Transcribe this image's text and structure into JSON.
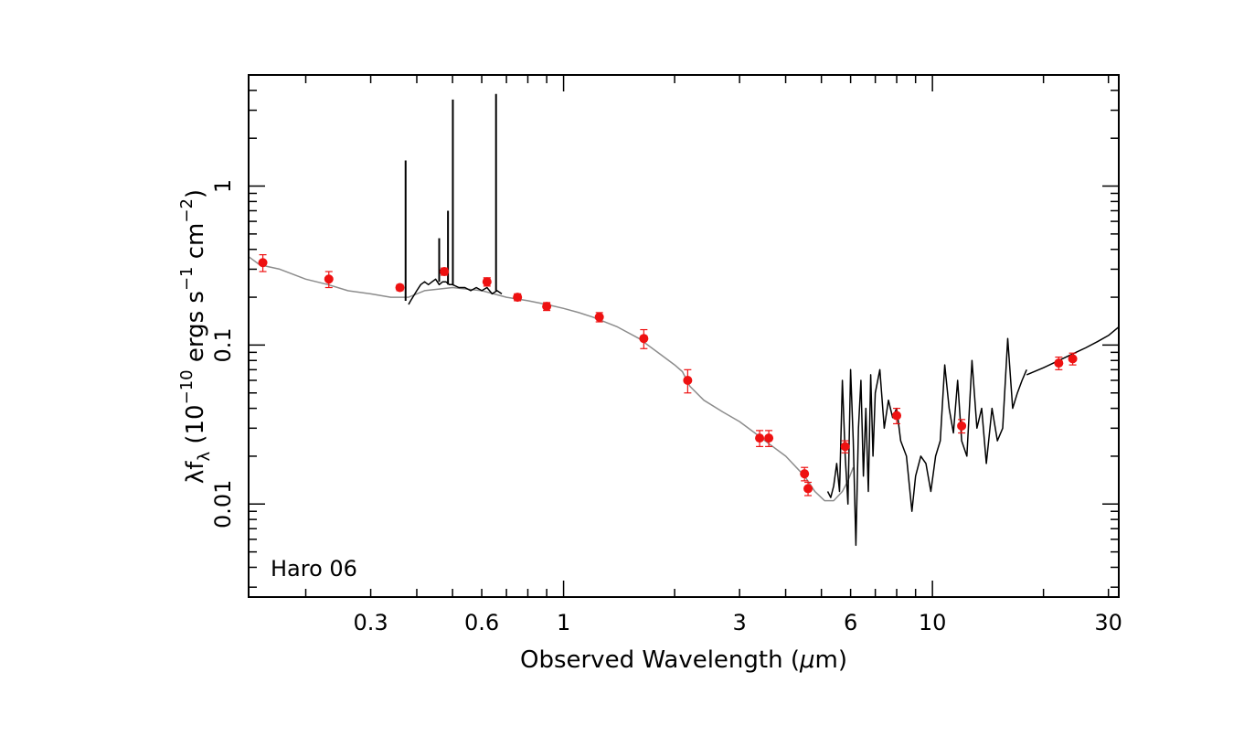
{
  "chart_data": {
    "type": "line",
    "xlabel_main": "Observed Wavelength (",
    "xlabel_unit": "μ",
    "xlabel_tail": "m)",
    "ylabel_lambda": "λf",
    "ylabel_lambda_sub": "λ",
    "ylabel_open": " (10",
    "ylabel_exp1": "−10",
    "ylabel_mid": " ergs s",
    "ylabel_exp2": "−1",
    "ylabel_mid2": " cm",
    "ylabel_exp3": "−2",
    "ylabel_close": ")",
    "annotation": "Haro 06",
    "x_scale": "log",
    "y_scale": "log",
    "xlim": [
      0.14,
      32
    ],
    "ylim": [
      0.0026,
      5.0
    ],
    "x_ticks": [
      {
        "value": 0.3,
        "label": "0.3"
      },
      {
        "value": 0.6,
        "label": "0.6"
      },
      {
        "value": 1,
        "label": "1"
      },
      {
        "value": 3,
        "label": "3"
      },
      {
        "value": 6,
        "label": "6"
      },
      {
        "value": 10,
        "label": "10"
      },
      {
        "value": 30,
        "label": "30"
      }
    ],
    "y_ticks": [
      {
        "value": 0.01,
        "label": "0.01"
      },
      {
        "value": 0.1,
        "label": "0.1"
      },
      {
        "value": 1,
        "label": "1"
      }
    ],
    "colors": {
      "model": "#8c8c8c",
      "spectrum": "#000000",
      "points": "#ee1111"
    },
    "model_sed": {
      "x": [
        0.14,
        0.15,
        0.17,
        0.2,
        0.23,
        0.26,
        0.3,
        0.34,
        0.38,
        0.42,
        0.5,
        0.6,
        0.7,
        0.8,
        0.9,
        1.0,
        1.1,
        1.2,
        1.4,
        1.6,
        1.8,
        2.0,
        2.1,
        2.2,
        2.4,
        2.7,
        3.0,
        3.3,
        3.6,
        4.0,
        4.5,
        4.8,
        5.1,
        5.4,
        5.7,
        5.9,
        6.1
      ],
      "y": [
        0.36,
        0.32,
        0.3,
        0.26,
        0.24,
        0.22,
        0.21,
        0.2,
        0.2,
        0.22,
        0.23,
        0.22,
        0.2,
        0.19,
        0.18,
        0.17,
        0.16,
        0.15,
        0.13,
        0.11,
        0.09,
        0.075,
        0.068,
        0.055,
        0.045,
        0.038,
        0.033,
        0.028,
        0.024,
        0.02,
        0.015,
        0.012,
        0.0105,
        0.0105,
        0.012,
        0.014,
        0.017
      ]
    },
    "model_sed_tail": {
      "x": [
        18,
        20,
        22,
        24,
        26,
        28,
        30,
        32
      ],
      "y": [
        0.065,
        0.072,
        0.08,
        0.088,
        0.096,
        0.105,
        0.115,
        0.13
      ]
    },
    "optical_spectrum": {
      "x": [
        0.38,
        0.385,
        0.39,
        0.4,
        0.41,
        0.42,
        0.43,
        0.44,
        0.45,
        0.46,
        0.47,
        0.48,
        0.49,
        0.5,
        0.52,
        0.54,
        0.56,
        0.58,
        0.6,
        0.62,
        0.64,
        0.66,
        0.68
      ],
      "y": [
        0.18,
        0.19,
        0.2,
        0.22,
        0.24,
        0.25,
        0.24,
        0.25,
        0.26,
        0.24,
        0.25,
        0.25,
        0.24,
        0.24,
        0.23,
        0.23,
        0.22,
        0.23,
        0.22,
        0.23,
        0.21,
        0.22,
        0.21
      ]
    },
    "emission_lines": [
      {
        "x": 0.373,
        "peak": 1.45,
        "base": 0.19
      },
      {
        "x": 0.486,
        "peak": 0.7,
        "base": 0.24
      },
      {
        "x": 0.501,
        "peak": 3.5,
        "base": 0.24
      },
      {
        "x": 0.656,
        "peak": 3.8,
        "base": 0.22
      },
      {
        "x": 0.46,
        "peak": 0.47,
        "base": 0.25
      }
    ],
    "ir_spectrum": {
      "x": [
        5.2,
        5.3,
        5.4,
        5.5,
        5.6,
        5.7,
        5.8,
        5.9,
        6.0,
        6.1,
        6.2,
        6.3,
        6.4,
        6.5,
        6.6,
        6.7,
        6.8,
        6.9,
        7.0,
        7.2,
        7.4,
        7.6,
        7.8,
        8.0,
        8.2,
        8.5,
        8.8,
        9.0,
        9.3,
        9.6,
        9.9,
        10.2,
        10.5,
        10.8,
        11.1,
        11.4,
        11.7,
        12.0,
        12.4,
        12.8,
        13.2,
        13.6,
        14.0,
        14.5,
        15.0,
        15.5,
        16.0,
        16.5,
        17.0,
        17.5,
        18.0
      ],
      "y": [
        0.012,
        0.011,
        0.013,
        0.018,
        0.012,
        0.06,
        0.02,
        0.01,
        0.07,
        0.025,
        0.0055,
        0.03,
        0.06,
        0.015,
        0.04,
        0.012,
        0.065,
        0.02,
        0.05,
        0.07,
        0.03,
        0.045,
        0.035,
        0.04,
        0.025,
        0.02,
        0.009,
        0.015,
        0.02,
        0.018,
        0.012,
        0.02,
        0.025,
        0.075,
        0.04,
        0.028,
        0.06,
        0.025,
        0.02,
        0.08,
        0.03,
        0.04,
        0.018,
        0.04,
        0.025,
        0.03,
        0.11,
        0.04,
        0.05,
        0.06,
        0.07
      ]
    },
    "photometry": [
      {
        "x": 0.153,
        "y": 0.33,
        "err": 0.04
      },
      {
        "x": 0.231,
        "y": 0.26,
        "err": 0.03
      },
      {
        "x": 0.36,
        "y": 0.23,
        "err": 0.01
      },
      {
        "x": 0.475,
        "y": 0.29,
        "err": 0.015
      },
      {
        "x": 0.62,
        "y": 0.25,
        "err": 0.015
      },
      {
        "x": 0.75,
        "y": 0.2,
        "err": 0.01
      },
      {
        "x": 0.9,
        "y": 0.175,
        "err": 0.01
      },
      {
        "x": 1.25,
        "y": 0.15,
        "err": 0.01
      },
      {
        "x": 1.65,
        "y": 0.11,
        "err": 0.015
      },
      {
        "x": 2.17,
        "y": 0.06,
        "err": 0.01
      },
      {
        "x": 3.4,
        "y": 0.026,
        "err": 0.003
      },
      {
        "x": 3.6,
        "y": 0.026,
        "err": 0.003
      },
      {
        "x": 4.5,
        "y": 0.0155,
        "err": 0.0015
      },
      {
        "x": 4.6,
        "y": 0.0125,
        "err": 0.0012
      },
      {
        "x": 5.8,
        "y": 0.023,
        "err": 0.002
      },
      {
        "x": 8.0,
        "y": 0.036,
        "err": 0.004
      },
      {
        "x": 12.0,
        "y": 0.031,
        "err": 0.003
      },
      {
        "x": 22.0,
        "y": 0.077,
        "err": 0.007
      },
      {
        "x": 24.0,
        "y": 0.082,
        "err": 0.007
      }
    ]
  }
}
